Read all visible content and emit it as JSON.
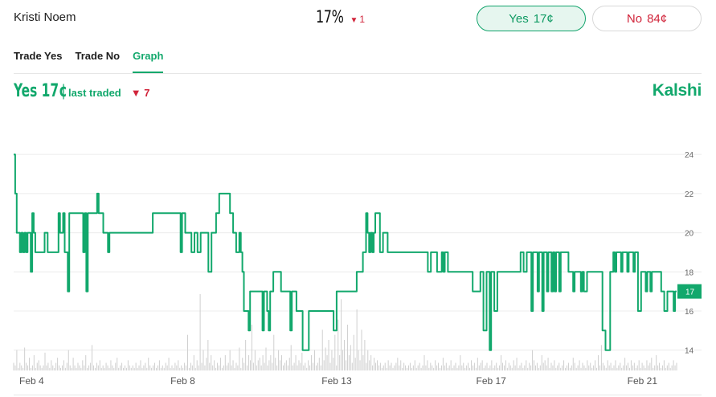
{
  "header": {
    "market_name": "Kristi Noem",
    "price": "17%",
    "price_change": "1",
    "price_change_direction": "down",
    "buy_yes": {
      "label": "Yes",
      "price": "17¢"
    },
    "buy_no": {
      "label": "No",
      "price": "84¢"
    }
  },
  "tabs": [
    {
      "label": "Trade Yes",
      "active": false
    },
    {
      "label": "Trade No",
      "active": false
    },
    {
      "label": "Graph",
      "active": true
    }
  ],
  "summary": {
    "yes_label": "Yes 17¢",
    "last_traded": "last traded",
    "change": "7",
    "change_direction": "down"
  },
  "brand": "Kalshi",
  "colors": {
    "green": "#12a86c",
    "red": "#d1243a",
    "grid": "#ececec",
    "volume": "#cfcfcf"
  },
  "chart_data": {
    "type": "line",
    "x_ticks": [
      "Feb 4",
      "Feb 8",
      "Feb 13",
      "Feb 17",
      "Feb 21"
    ],
    "y_ticks": [
      14,
      16,
      18,
      20,
      22,
      24
    ],
    "ylim": [
      13,
      24.5
    ],
    "current_value_label": "17",
    "series": [
      {
        "values": [
          24,
          22,
          20,
          20,
          19,
          20,
          19,
          20,
          19,
          20,
          20,
          18,
          21,
          20,
          19,
          19,
          19,
          19,
          19,
          19,
          20,
          20,
          19,
          19,
          19,
          19,
          19,
          19,
          19,
          21,
          20,
          20,
          21,
          19,
          19,
          17,
          21,
          21,
          21,
          21,
          21,
          21,
          21,
          21,
          21,
          19,
          21,
          17,
          21,
          21,
          21,
          21,
          21,
          21,
          22,
          21,
          21,
          21,
          20,
          20,
          20,
          19,
          20,
          20,
          20,
          20,
          20,
          20,
          20,
          20,
          20,
          20,
          20,
          20,
          20,
          20,
          20,
          20,
          20,
          20,
          20,
          20,
          20,
          20,
          20,
          20,
          20,
          20,
          20,
          20,
          21,
          21,
          21,
          21,
          21,
          21,
          21,
          21,
          21,
          21,
          21,
          21,
          21,
          21,
          21,
          21,
          21,
          21,
          19,
          21,
          21,
          20,
          20,
          20,
          20,
          19,
          19,
          20,
          20,
          19,
          19,
          20,
          20,
          20,
          20,
          20,
          18,
          18,
          20,
          20,
          20,
          21,
          21,
          22,
          22,
          22,
          22,
          22,
          22,
          22,
          21,
          21,
          20,
          20,
          19,
          19,
          20,
          19,
          18,
          16,
          16,
          16,
          15,
          17,
          17,
          17,
          17,
          17,
          17,
          17,
          17,
          15,
          17,
          17,
          16,
          15,
          17,
          17,
          18,
          18,
          18,
          18,
          18,
          17,
          17,
          17,
          17,
          17,
          17,
          15,
          17,
          17,
          17,
          16,
          16,
          16,
          16,
          14,
          14,
          14,
          14,
          16,
          16,
          16,
          16,
          16,
          16,
          16,
          16,
          16,
          16,
          16,
          16,
          16,
          16,
          16,
          16,
          15,
          15,
          17,
          17,
          17,
          17,
          17,
          17,
          17,
          17,
          17,
          17,
          17,
          17,
          17,
          18,
          18,
          18,
          18,
          19,
          19,
          21,
          20,
          19,
          20,
          19,
          20,
          21,
          21,
          21,
          19,
          19,
          20,
          20,
          20,
          19,
          19,
          19,
          19,
          19,
          19,
          19,
          19,
          19,
          19,
          19,
          19,
          19,
          19,
          19,
          19,
          19,
          19,
          19,
          19,
          19,
          19,
          19,
          19,
          19,
          19,
          18,
          18,
          19,
          19,
          19,
          19,
          18,
          18,
          18,
          19,
          18,
          19,
          19,
          18,
          18,
          18,
          18,
          18,
          18,
          18,
          18,
          18,
          18,
          18,
          18,
          18,
          18,
          18,
          18,
          17,
          17,
          17,
          17,
          17,
          18,
          18,
          15,
          15,
          18,
          18,
          14,
          18,
          18,
          16,
          16,
          18,
          18,
          18,
          18,
          18,
          18,
          18,
          18,
          18,
          18,
          18,
          18,
          18,
          18,
          18,
          19,
          19,
          18,
          18,
          19,
          19,
          19,
          16,
          19,
          19,
          19,
          17,
          19,
          19,
          16,
          19,
          19,
          17,
          19,
          19,
          17,
          19,
          17,
          19,
          19,
          17,
          19,
          19,
          19,
          19,
          19,
          18,
          18,
          18,
          17,
          18,
          18,
          18,
          18,
          17,
          18,
          17,
          17,
          18,
          18,
          18,
          18,
          18,
          18,
          18,
          18,
          18,
          18,
          15,
          15,
          14,
          14,
          14,
          18,
          18,
          19,
          18,
          19,
          19,
          19,
          18,
          19,
          19,
          19,
          18,
          19,
          19,
          19,
          18,
          19,
          19,
          16,
          16,
          18,
          18,
          18,
          17,
          18,
          18,
          17,
          18,
          18,
          18,
          18,
          18,
          18,
          17,
          17,
          16,
          16,
          17,
          17,
          17,
          17,
          16,
          17,
          17
        ]
      }
    ],
    "volume": [
      3,
      2,
      8,
      1,
      3,
      2,
      1,
      9,
      3,
      2,
      5,
      1,
      2,
      6,
      1,
      3,
      4,
      2,
      1,
      2,
      7,
      2,
      3,
      1,
      4,
      2,
      1,
      3,
      5,
      2,
      1,
      2,
      4,
      1,
      3,
      8,
      2,
      1,
      5,
      2,
      1,
      3,
      2,
      1,
      4,
      2,
      6,
      1,
      2,
      3,
      10,
      2,
      1,
      3,
      2,
      4,
      1,
      2,
      1,
      3,
      2,
      1,
      4,
      2,
      1,
      3,
      5,
      1,
      2,
      3,
      1,
      2,
      1,
      4,
      2,
      1,
      2,
      1,
      3,
      1,
      2,
      4,
      1,
      2,
      3,
      1,
      5,
      2,
      1,
      2,
      3,
      1,
      2,
      4,
      1,
      2,
      1,
      3,
      2,
      5,
      1,
      2,
      1,
      3,
      2,
      4,
      1,
      2,
      1,
      3,
      2,
      14,
      1,
      3,
      2,
      6,
      1,
      4,
      2,
      30,
      3,
      8,
      2,
      5,
      12,
      3,
      6,
      2,
      4,
      1,
      3,
      2,
      5,
      1,
      2,
      6,
      2,
      3,
      8,
      2,
      4,
      1,
      3,
      2,
      9,
      1,
      5,
      3,
      12,
      2,
      6,
      4,
      18,
      3,
      8,
      2,
      4,
      5,
      2,
      6,
      3,
      9,
      2,
      4,
      6,
      3,
      14,
      5,
      2,
      8,
      4,
      6,
      2,
      3,
      4,
      2,
      5,
      10,
      2,
      3,
      6,
      2,
      4,
      3,
      7,
      2,
      3,
      1,
      4,
      2,
      6,
      3,
      8,
      2,
      3,
      5,
      2,
      16,
      4,
      9,
      6,
      12,
      3,
      8,
      5,
      14,
      2,
      20,
      6,
      28,
      8,
      12,
      4,
      18,
      6,
      10,
      3,
      14,
      5,
      24,
      8,
      4,
      16,
      6,
      12,
      3,
      8,
      4,
      6,
      2,
      5,
      3,
      4,
      2,
      3,
      1,
      2,
      3,
      1,
      4,
      2,
      3,
      1,
      2,
      3,
      5,
      2,
      4,
      1,
      3,
      2,
      1,
      2,
      3,
      1,
      2,
      4,
      1,
      2,
      3,
      1,
      2,
      6,
      2,
      4,
      1,
      3,
      2,
      1,
      4,
      2,
      3,
      1,
      2,
      5,
      2,
      3,
      1,
      2,
      4,
      1,
      2,
      3,
      1,
      2,
      6,
      2,
      3,
      1,
      2,
      3,
      1,
      4,
      2,
      3,
      1,
      5,
      2,
      3,
      4,
      1,
      2,
      3,
      1,
      2,
      4,
      1,
      2,
      3,
      1,
      2,
      6,
      3,
      2,
      4,
      1,
      3,
      2,
      1,
      4,
      2,
      5,
      1,
      2,
      3,
      1,
      2,
      4,
      1,
      3,
      2,
      8,
      4,
      2,
      3,
      1,
      2,
      6,
      3,
      4,
      2,
      5,
      1,
      3,
      2,
      4,
      1,
      2,
      3,
      1,
      2,
      4,
      1,
      2,
      3,
      1,
      2,
      5,
      3,
      1,
      2,
      4,
      1,
      3,
      2,
      1,
      4,
      2,
      3,
      1,
      2,
      4,
      1,
      6,
      2,
      10,
      3,
      2,
      1,
      4,
      2,
      3,
      1,
      2,
      4,
      1,
      2,
      3,
      1,
      2,
      5,
      2,
      3,
      1,
      4,
      2,
      3,
      1,
      2,
      4,
      1,
      3,
      2,
      1,
      4,
      2,
      3,
      5,
      1,
      2,
      6,
      2,
      3,
      1,
      2,
      4,
      1,
      2,
      3,
      1,
      2,
      4,
      2,
      3
    ]
  }
}
